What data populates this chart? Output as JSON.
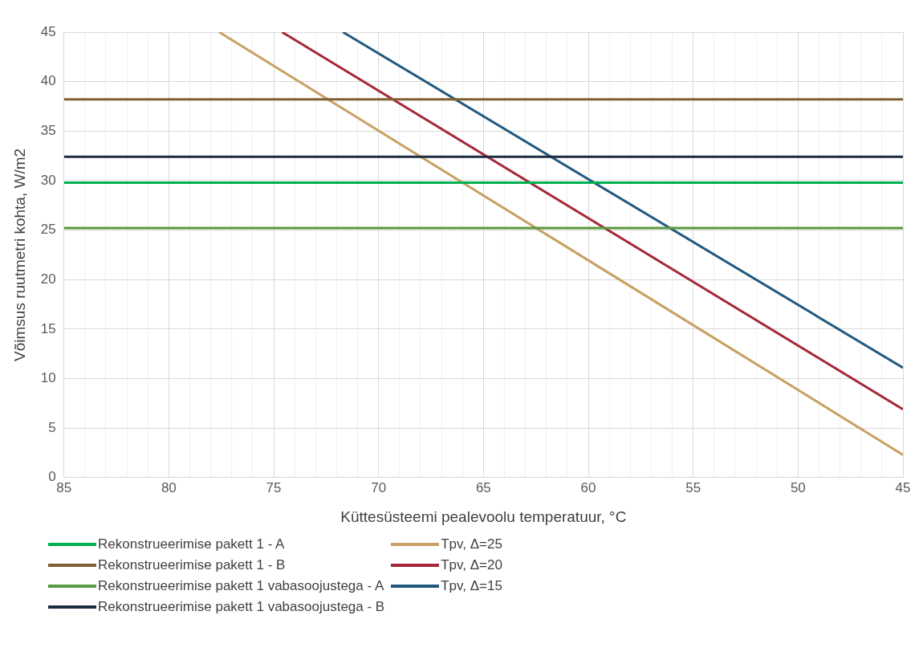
{
  "chart_data": {
    "type": "line",
    "xlabel": "Küttesüsteemi pealevoolu temperatuur, °C",
    "ylabel": "Võimsus ruutmetri kohta, W/m2",
    "xlim": [
      85,
      45
    ],
    "ylim": [
      0,
      45
    ],
    "xticks": [
      85,
      {
        "value": 84,
        "label": null
      },
      {
        "value": 83,
        "label": null
      },
      {
        "value": 82,
        "label": null
      },
      {
        "value": 81,
        "label": null
      },
      80,
      {
        "value": 79,
        "label": null
      },
      {
        "value": 78,
        "label": null
      },
      {
        "value": 77,
        "label": null
      },
      {
        "value": 76,
        "label": null
      },
      75,
      {
        "value": 74,
        "label": null
      },
      {
        "value": 73,
        "label": null
      },
      {
        "value": 72,
        "label": null
      },
      {
        "value": 71,
        "label": null
      },
      70,
      {
        "value": 69,
        "label": null
      },
      {
        "value": 68,
        "label": null
      },
      {
        "value": 67,
        "label": null
      },
      {
        "value": 66,
        "label": null
      },
      65,
      {
        "value": 64,
        "label": null
      },
      {
        "value": 63,
        "label": null
      },
      {
        "value": 62,
        "label": null
      },
      {
        "value": 61,
        "label": null
      },
      60,
      {
        "value": 59,
        "label": null
      },
      {
        "value": 58,
        "label": null
      },
      {
        "value": 57,
        "label": null
      },
      {
        "value": 56,
        "label": null
      },
      55,
      {
        "value": 54,
        "label": null
      },
      {
        "value": 53,
        "label": null
      },
      {
        "value": 52,
        "label": null
      },
      {
        "value": 51,
        "label": null
      },
      50,
      {
        "value": 49,
        "label": null
      },
      {
        "value": 48,
        "label": null
      },
      {
        "value": 47,
        "label": null
      },
      {
        "value": 46,
        "label": null
      },
      45
    ],
    "yticks": [
      0,
      5,
      10,
      15,
      20,
      25,
      30,
      35,
      40,
      45
    ],
    "grid": true,
    "legend": "bottom",
    "marker": "none",
    "line_style": "solid",
    "series": [
      {
        "name": "Rekonstrueerimise pakett 1 - A",
        "color": "#00b050",
        "x": [
          85,
          45
        ],
        "values": [
          29.8,
          29.8
        ]
      },
      {
        "name": "Rekonstrueerimise pakett 1 - B",
        "color": "#7f6030",
        "x": [
          85,
          45
        ],
        "values": [
          38.2,
          38.2
        ]
      },
      {
        "name": "Rekonstrueerimise pakett 1 vabasoojustega - A",
        "color": "#5a9a40",
        "x": [
          85,
          45
        ],
        "values": [
          25.2,
          25.2
        ]
      },
      {
        "name": "Rekonstrueerimise pakett 1 vabasoojustega - B",
        "color": "#1c2d40",
        "x": [
          85,
          45
        ],
        "values": [
          32.4,
          32.4
        ]
      },
      {
        "name": "Tpv, Δ=25",
        "color": "#c9a063",
        "x": [
          77.6,
          45
        ],
        "values": [
          45,
          2.3
        ]
      },
      {
        "name": "Tpv, Δ=20",
        "color": "#a5283a",
        "x": [
          74.6,
          45
        ],
        "values": [
          45,
          6.9
        ]
      },
      {
        "name": "Tpv, Δ=15",
        "color": "#22587e",
        "x": [
          71.7,
          45
        ],
        "values": [
          45,
          11.1
        ]
      }
    ]
  }
}
